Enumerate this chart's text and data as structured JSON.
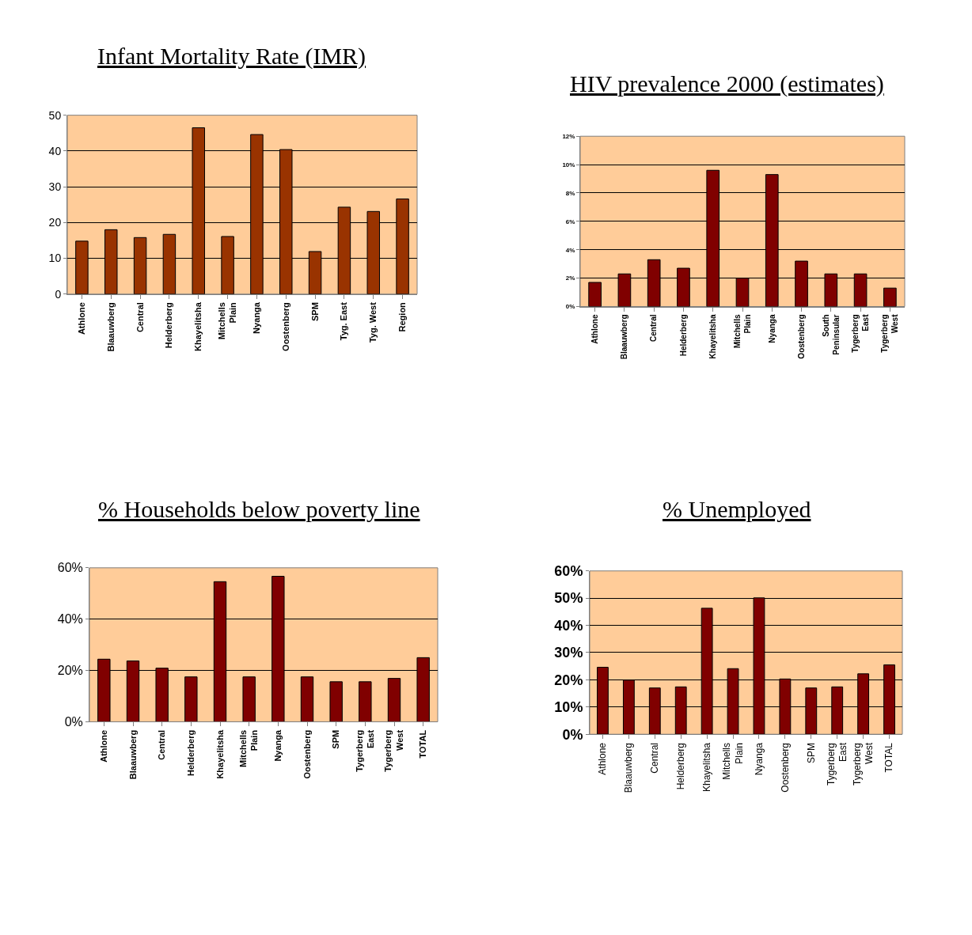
{
  "chart_data": [
    {
      "type": "bar",
      "title": "Infant Mortality Rate (IMR)",
      "categories": [
        "Athlone",
        "Blaauwberg",
        "Central",
        "Helderberg",
        "Khayelitsha",
        "Mitchells\nPlain",
        "Nyanga",
        "Oostenberg",
        "SPM",
        "Tyg. East",
        "Tyg. West",
        "Region"
      ],
      "values": [
        14.8,
        18.0,
        15.8,
        16.7,
        46.5,
        16.1,
        44.6,
        40.4,
        11.9,
        24.3,
        23.1,
        26.6
      ],
      "color": "#993300",
      "ylim": [
        0,
        50
      ],
      "yticks": [
        0,
        10,
        20,
        30,
        40,
        50
      ],
      "grid": "y"
    },
    {
      "type": "bar",
      "title": "HIV prevalence 2000 (estimates)",
      "categories": [
        "Athlone",
        "Blaauwberg",
        "Central",
        "Helderberg",
        "Khayelitsha",
        "Mitchells\nPlain",
        "Nyanga",
        "Oostenberg",
        "South\nPeninsular",
        "Tygerberg\nEast",
        "Tygerberg\nWest"
      ],
      "values": [
        1.7,
        2.3,
        3.3,
        2.7,
        9.6,
        2.0,
        9.3,
        3.2,
        2.3,
        2.3,
        1.3
      ],
      "color": "#800000",
      "ylim": [
        0,
        12
      ],
      "yticks": [
        {
          "value": 0,
          "label": "0%"
        },
        {
          "value": 2,
          "label": "2%"
        },
        {
          "value": 4,
          "label": "4%"
        },
        {
          "value": 6,
          "label": "6%"
        },
        {
          "value": 8,
          "label": "8%"
        },
        {
          "value": 10,
          "label": "10%"
        },
        {
          "value": 12,
          "label": "12%"
        }
      ],
      "grid": "y"
    },
    {
      "type": "bar",
      "title": "% Households below poverty line",
      "categories": [
        "Athlone",
        "Blaauwberg",
        "Central",
        "Helderberg",
        "Khayelitsha",
        "Mitchells\nPlain",
        "Nyanga",
        "Oostenberg",
        "SPM",
        "Tygerberg\nEast",
        "Tygerberg\nWest",
        "TOTAL"
      ],
      "values": [
        24.4,
        23.7,
        20.9,
        17.5,
        54.6,
        17.5,
        56.7,
        17.5,
        15.6,
        15.6,
        16.9,
        25.0
      ],
      "color": "#800000",
      "ylim": [
        0,
        60
      ],
      "yticks": [
        {
          "value": 0,
          "label": "0%"
        },
        {
          "value": 20,
          "label": "20%"
        },
        {
          "value": 40,
          "label": "40%"
        },
        {
          "value": 60,
          "label": "60%"
        }
      ],
      "grid": "y"
    },
    {
      "type": "bar",
      "title": "% Unemployed",
      "categories": [
        "Athlone",
        "Blaauwberg",
        "Central",
        "Helderberg",
        "Khayelitsha",
        "Mitchells\nPlain",
        "Nyanga",
        "Oostenberg",
        "SPM",
        "Tygerberg\nEast",
        "Tygerberg\nWest",
        "TOTAL"
      ],
      "values": [
        24.6,
        19.9,
        17.0,
        17.4,
        46.3,
        24.1,
        50.1,
        20.3,
        17.0,
        17.4,
        22.2,
        25.5
      ],
      "color": "#800000",
      "ylim": [
        0,
        60
      ],
      "yticks": [
        {
          "value": 0,
          "label": "0%"
        },
        {
          "value": 10,
          "label": "10%"
        },
        {
          "value": 20,
          "label": "20%"
        },
        {
          "value": 30,
          "label": "30%"
        },
        {
          "value": 40,
          "label": "40%"
        },
        {
          "value": 50,
          "label": "50%"
        },
        {
          "value": 60,
          "label": "60%"
        }
      ],
      "grid": "y"
    }
  ]
}
